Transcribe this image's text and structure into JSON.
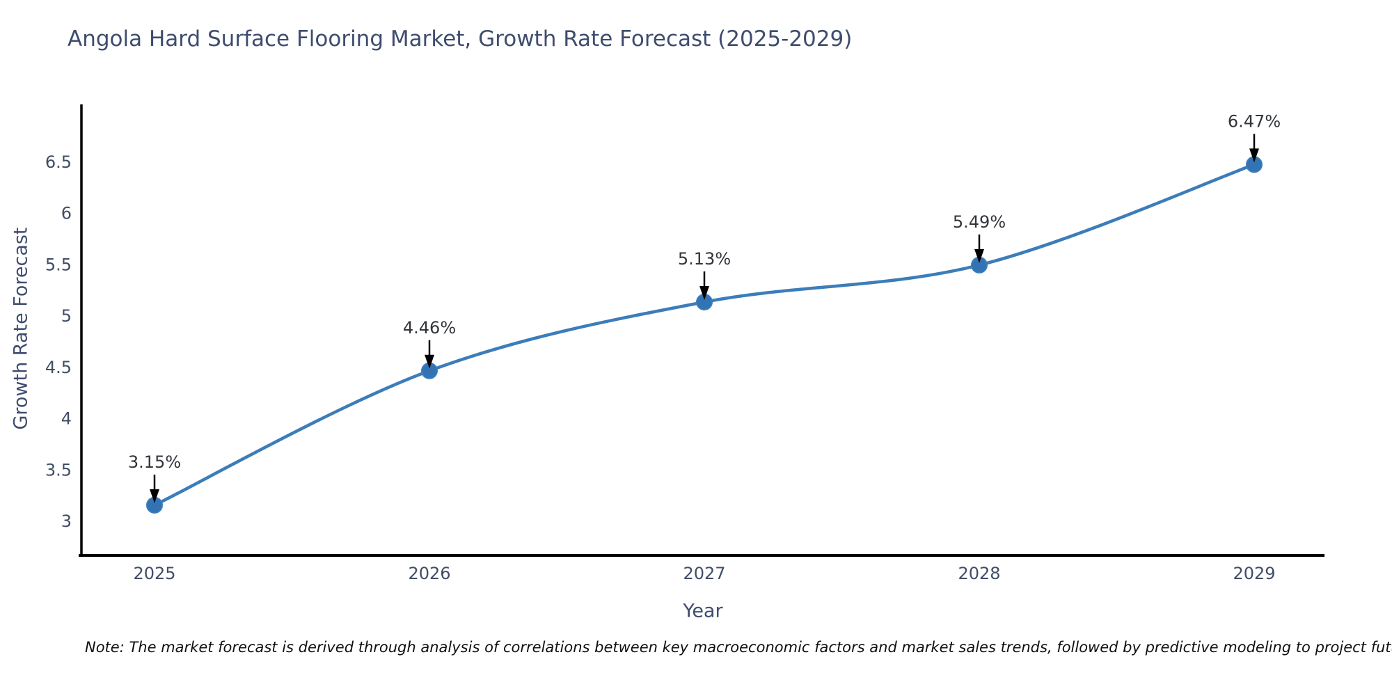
{
  "chart_data": {
    "type": "line",
    "title": "Angola Hard Surface Flooring Market, Growth Rate Forecast (2025-2029)",
    "xlabel": "Year",
    "ylabel": "Growth Rate Forecast",
    "x": [
      "2025",
      "2026",
      "2027",
      "2028",
      "2029"
    ],
    "values": [
      3.15,
      4.46,
      5.13,
      5.49,
      6.47
    ],
    "point_labels": [
      "3.15%",
      "4.46%",
      "5.13%",
      "5.49%",
      "6.47%"
    ],
    "y_ticks": [
      3,
      3.5,
      4,
      4.5,
      5,
      5.5,
      6,
      6.5
    ],
    "ylim": [
      2.66,
      7.06
    ],
    "grid": false,
    "legend_position": "none",
    "line_shape": "spline",
    "colors": {
      "line": "#3c7db9",
      "marker": "#3273b4",
      "axis": "#000000",
      "arrow": "#000000",
      "title_text": "#3e4c6e",
      "tick_text": "#404d66",
      "annotation_text": "#31353b",
      "note_text": "#101010",
      "background": "#ffffff"
    }
  },
  "note": "Note: The market forecast is derived through analysis of correlations between key macroeconomic factors and market sales trends, followed by predictive modeling to project future sales"
}
